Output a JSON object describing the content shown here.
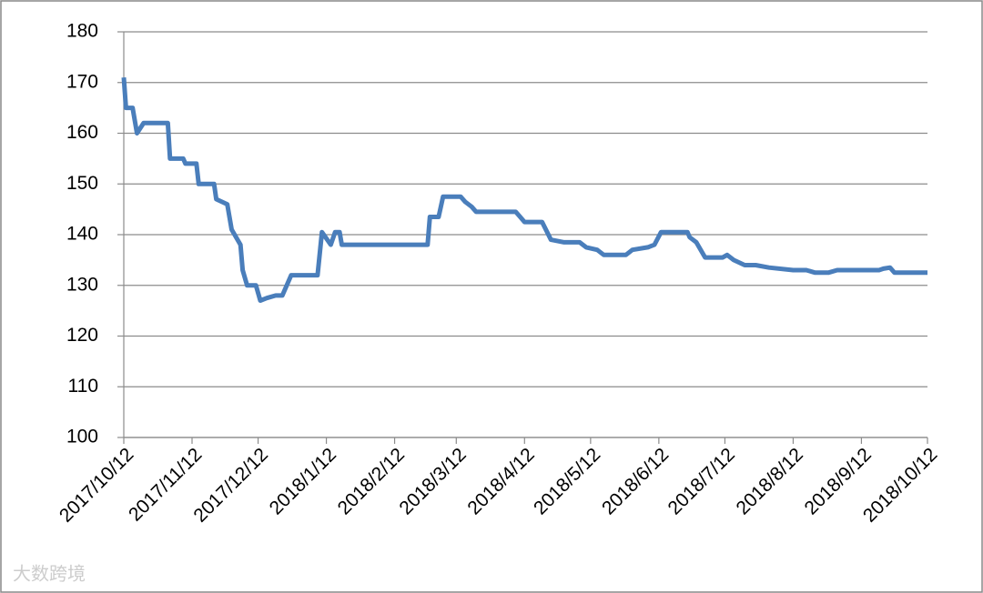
{
  "chart_data": {
    "type": "line",
    "x": [
      "2017/10/12",
      "2017/10/13",
      "2017/10/16",
      "2017/10/18",
      "2017/10/21",
      "2017/11/1",
      "2017/11/2",
      "2017/11/8",
      "2017/11/9",
      "2017/11/14",
      "2017/11/15",
      "2017/11/22",
      "2017/11/23",
      "2017/11/28",
      "2017/11/30",
      "2017/12/4",
      "2017/12/5",
      "2017/12/7",
      "2017/12/11",
      "2017/12/13",
      "2017/12/16",
      "2017/12/20",
      "2017/12/23",
      "2017/12/27",
      "2018/1/8",
      "2018/1/10",
      "2018/1/14",
      "2018/1/16",
      "2018/1/18",
      "2018/1/19",
      "2018/2/27",
      "2018/2/28",
      "2018/3/4",
      "2018/3/6",
      "2018/3/14",
      "2018/3/16",
      "2018/3/19",
      "2018/3/21",
      "2018/4/8",
      "2018/4/10",
      "2018/4/12",
      "2018/4/20",
      "2018/4/24",
      "2018/4/30",
      "2018/5/7",
      "2018/5/10",
      "2018/5/15",
      "2018/5/18",
      "2018/5/28",
      "2018/5/31",
      "2018/6/7",
      "2018/6/10",
      "2018/6/13",
      "2018/6/25",
      "2018/6/26",
      "2018/6/29",
      "2018/7/3",
      "2018/7/11",
      "2018/7/13",
      "2018/7/16",
      "2018/7/21",
      "2018/7/26",
      "2018/8/1",
      "2018/8/12",
      "2018/8/18",
      "2018/8/22",
      "2018/8/28",
      "2018/9/1",
      "2018/9/9",
      "2018/9/20",
      "2018/9/22",
      "2018/9/25",
      "2018/9/27",
      "2018/10/12"
    ],
    "series": [
      {
        "color": "#4a7ebb",
        "values": [
          171,
          165,
          165,
          160,
          162,
          162,
          155,
          155,
          154,
          154,
          150,
          150,
          147,
          146,
          141,
          138,
          133,
          130,
          130,
          127,
          127.5,
          128,
          128,
          132,
          132,
          140.5,
          138,
          140.5,
          140.5,
          138,
          138,
          143.5,
          143.5,
          147.5,
          147.5,
          146.5,
          145.5,
          144.5,
          144.5,
          143.5,
          142.5,
          142.5,
          139,
          138.5,
          138.5,
          137.5,
          137,
          136,
          136,
          137,
          137.5,
          138,
          140.5,
          140.5,
          139.5,
          138.5,
          135.5,
          135.5,
          136,
          135,
          134,
          134,
          133.5,
          133,
          133,
          132.5,
          132.5,
          133,
          133,
          133,
          133.3,
          133.5,
          132.5,
          132.5
        ]
      }
    ],
    "xlim": [
      "2017/10/12",
      "2018/10/12"
    ],
    "xticks": [
      "2017/10/12",
      "2017/11/12",
      "2017/12/12",
      "2018/1/12",
      "2018/2/12",
      "2018/3/12",
      "2018/4/12",
      "2018/5/12",
      "2018/6/12",
      "2018/7/12",
      "2018/8/12",
      "2018/9/12",
      "2018/10/12"
    ],
    "ylim": [
      100,
      180
    ],
    "yticks": [
      100,
      110,
      120,
      130,
      140,
      150,
      160,
      170,
      180
    ],
    "grid": true
  },
  "watermark": "大数跨境"
}
